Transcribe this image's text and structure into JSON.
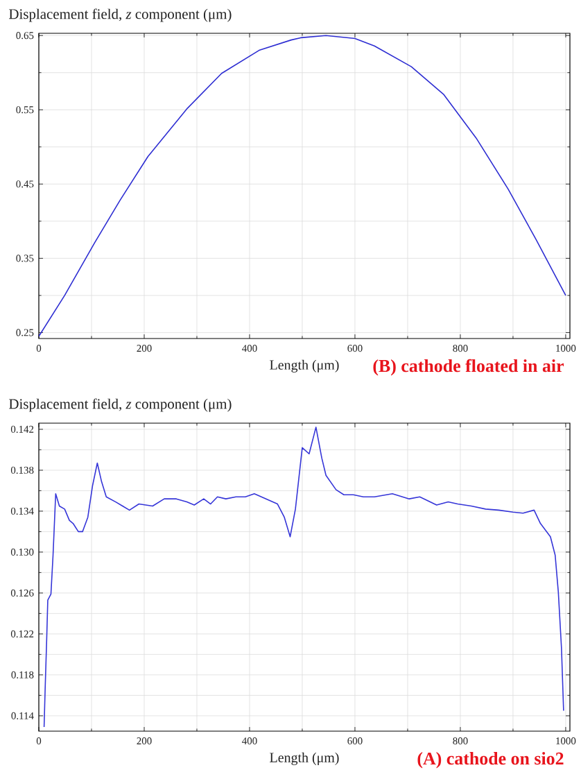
{
  "chart_data": [
    {
      "type": "line",
      "title": "Displacement field, *z* component (μm)",
      "xlabel": "Length (μm)",
      "annotations": [
        "(B) cathode floated in air"
      ],
      "color": "#2d2dd2",
      "line_style": "solid",
      "grid": true,
      "xlim": [
        0,
        1008
      ],
      "ylim": [
        0.242,
        0.653
      ],
      "xticks": [
        0,
        200,
        400,
        600,
        800,
        1000
      ],
      "yticks": [
        0.25,
        0.35,
        0.45,
        0.55,
        0.65
      ],
      "x": [
        0,
        49,
        106,
        154,
        207,
        282,
        347,
        418,
        479,
        497,
        545,
        600,
        637,
        707,
        768,
        830,
        891,
        944,
        1000
      ],
      "values": [
        0.245,
        0.3,
        0.371,
        0.428,
        0.487,
        0.552,
        0.599,
        0.63,
        0.644,
        0.647,
        0.65,
        0.646,
        0.636,
        0.608,
        0.571,
        0.512,
        0.443,
        0.375,
        0.3
      ]
    },
    {
      "type": "line",
      "title": "Displacement field, *z* component (μm)",
      "xlabel": "Length (μm)",
      "annotations": [
        "(A) cathode on sio2"
      ],
      "color": "#3535d8",
      "line_style": "solid",
      "grid": true,
      "xlim": [
        0,
        1008
      ],
      "ylim": [
        0.1125,
        0.1426
      ],
      "xticks": [
        0,
        200,
        400,
        600,
        800,
        1000
      ],
      "yticks": [
        0.114,
        0.118,
        0.122,
        0.126,
        {
          "value": 0.13,
          "label": "0.130"
        },
        0.134,
        0.138,
        0.142
      ],
      "x": [
        10,
        12,
        15,
        17,
        23,
        27,
        32,
        39,
        49,
        58,
        65,
        75,
        83,
        93,
        102,
        111,
        119,
        128,
        146,
        159,
        172,
        190,
        216,
        238,
        261,
        281,
        295,
        313,
        326,
        339,
        355,
        374,
        392,
        409,
        431,
        453,
        466,
        477,
        487,
        500,
        513,
        526,
        537,
        545,
        564,
        579,
        597,
        616,
        637,
        671,
        703,
        723,
        755,
        777,
        795,
        821,
        848,
        873,
        900,
        919,
        940,
        952,
        971,
        980,
        986,
        992,
        996
      ],
      "values": [
        0.1129,
        0.1166,
        0.1216,
        0.1253,
        0.1259,
        0.1297,
        0.1357,
        0.1345,
        0.1342,
        0.1331,
        0.1328,
        0.132,
        0.132,
        0.1334,
        0.1365,
        0.1387,
        0.1369,
        0.1354,
        0.1349,
        0.1345,
        0.1341,
        0.1347,
        0.1345,
        0.1352,
        0.1352,
        0.1349,
        0.1346,
        0.1352,
        0.1347,
        0.1354,
        0.1352,
        0.1354,
        0.1354,
        0.1357,
        0.1352,
        0.1347,
        0.1334,
        0.1315,
        0.1342,
        0.1402,
        0.1396,
        0.1422,
        0.1392,
        0.1375,
        0.1361,
        0.1356,
        0.1356,
        0.1354,
        0.1354,
        0.1357,
        0.1352,
        0.1354,
        0.1346,
        0.1349,
        0.1347,
        0.1345,
        0.1342,
        0.1341,
        0.1339,
        0.1338,
        0.1341,
        0.1328,
        0.1315,
        0.1297,
        0.1261,
        0.1206,
        0.1145
      ]
    }
  ]
}
